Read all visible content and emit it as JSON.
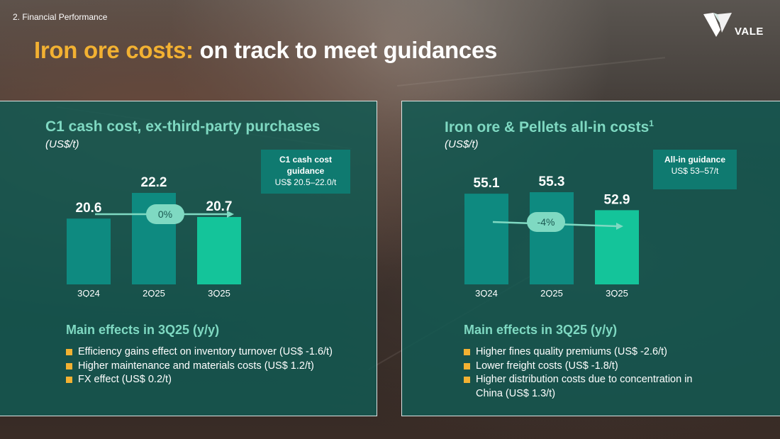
{
  "section": "2. Financial Performance",
  "title": {
    "accent": "Iron ore costs:",
    "rest": "on track to meet guidances"
  },
  "logo": {
    "text": "VALE",
    "icon": "vale-v-icon"
  },
  "colors": {
    "accent": "#f2b132",
    "teal_title": "#7fd9c2",
    "bar_dark": "#0e8a80",
    "bar_light": "#14c49a",
    "panel": "#135852",
    "pill": "#7fd9c2"
  },
  "chart_data": [
    {
      "type": "bar",
      "title": "C1 cash cost, ex-third-party purchases",
      "unit": "(US$/t)",
      "categories": [
        "3Q24",
        "2Q25",
        "3Q25"
      ],
      "values": [
        20.6,
        22.2,
        20.7
      ],
      "value_labels": [
        "20.6",
        "22.2",
        "20.7"
      ],
      "change_label": "0%",
      "guidance": {
        "title": "C1 cash cost guidance",
        "value": "US$ 20.5–22.0/t"
      },
      "effects_title": "Main effects in 3Q25 (y/y)",
      "effects": [
        "Efficiency gains effect on inventory turnover (US$ -1.6/t)",
        "Higher maintenance and materials costs (US$ 1.2/t)",
        "FX effect (US$ 0.2/t)"
      ]
    },
    {
      "type": "bar",
      "title": "Iron ore & Pellets all-in costs",
      "title_sup": "1",
      "unit": "(US$/t)",
      "categories": [
        "3Q24",
        "2Q25",
        "3Q25"
      ],
      "values": [
        55.1,
        55.3,
        52.9
      ],
      "value_labels": [
        "55.1",
        "55.3",
        "52.9"
      ],
      "change_label": "-4%",
      "guidance": {
        "title": "All-in guidance",
        "value": "US$ 53–57/t"
      },
      "effects_title": "Main effects in 3Q25 (y/y)",
      "effects": [
        "Higher fines quality premiums (US$ -2.6/t)",
        "Lower freight costs (US$ -1.8/t)",
        "Higher distribution costs due to concentration in China (US$ 1.3/t)"
      ]
    }
  ]
}
